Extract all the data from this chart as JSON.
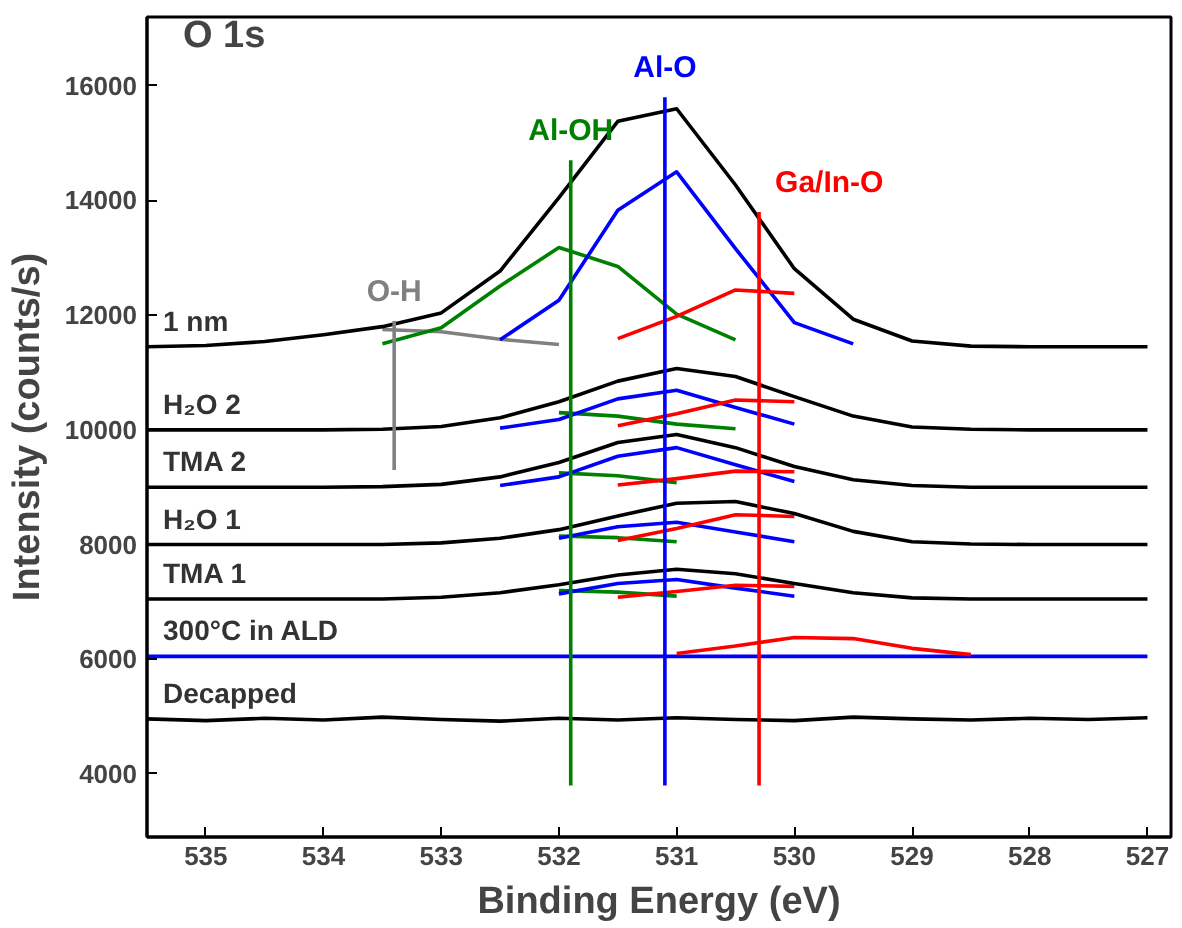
{
  "chart_data": {
    "type": "line",
    "xlabel": "Binding Energy (eV)",
    "ylabel": "Intensity (counts/s)",
    "xlim": [
      535.5,
      526.8
    ],
    "ylim": [
      2900,
      17200
    ],
    "xticks": [
      535,
      534,
      533,
      532,
      531,
      530,
      529,
      528,
      527
    ],
    "yticks": [
      4000,
      6000,
      8000,
      10000,
      12000,
      14000,
      16000
    ],
    "grid": false,
    "legend": "left",
    "marker": "none",
    "line_style": "solid",
    "x": [
      535.5,
      535,
      534.5,
      534,
      533.5,
      533,
      532.5,
      532,
      531.5,
      531,
      530.5,
      530,
      529.5,
      529,
      528.5,
      528,
      527.5,
      527
    ],
    "series": [
      {
        "color": "#808080",
        "values": [
          null,
          null,
          null,
          null,
          11750,
          11710,
          11580,
          11490,
          null,
          null,
          null,
          null,
          null,
          null,
          null,
          null,
          null,
          null
        ]
      },
      {
        "color": "#008000",
        "values": [
          null,
          null,
          null,
          null,
          11500,
          11780,
          12510,
          13180,
          12850,
          12020,
          11570,
          null,
          null,
          null,
          null,
          null,
          null,
          null
        ]
      },
      {
        "color": "#0000ff",
        "values": [
          null,
          null,
          null,
          null,
          null,
          null,
          11570,
          12260,
          13830,
          14500,
          13160,
          11870,
          11500,
          null,
          null,
          null,
          null,
          null
        ]
      },
      {
        "color": "#ff0000",
        "values": [
          null,
          null,
          null,
          null,
          null,
          null,
          null,
          null,
          11590,
          11980,
          12440,
          12380,
          null,
          null,
          null,
          null,
          null,
          null
        ]
      },
      {
        "name": "1 nm",
        "color": "#000000",
        "values": [
          11450,
          11470,
          11540,
          11660,
          11800,
          12040,
          12770,
          14050,
          15380,
          15600,
          14270,
          12810,
          11930,
          11550,
          11460,
          11450,
          11450,
          11450
        ]
      },
      {
        "color": "#008000",
        "values": [
          null,
          null,
          null,
          null,
          null,
          null,
          null,
          10300,
          10240,
          10100,
          10020,
          null,
          null,
          null,
          null,
          null,
          null,
          null
        ]
      },
      {
        "color": "#0000ff",
        "values": [
          null,
          null,
          null,
          null,
          null,
          null,
          10030,
          10180,
          10540,
          10690,
          10390,
          10100,
          null,
          null,
          null,
          null,
          null,
          null
        ]
      },
      {
        "color": "#ff0000",
        "values": [
          null,
          null,
          null,
          null,
          null,
          null,
          null,
          null,
          10070,
          10280,
          10520,
          10490,
          null,
          null,
          null,
          null,
          null,
          null
        ]
      },
      {
        "name": "H₂O 2",
        "color": "#000000",
        "values": [
          10000,
          10000,
          10000,
          10000,
          10010,
          10060,
          10210,
          10490,
          10850,
          11070,
          10930,
          10580,
          10240,
          10050,
          10010,
          10000,
          10000,
          10000
        ]
      },
      {
        "color": "#008000",
        "values": [
          null,
          null,
          null,
          null,
          null,
          null,
          null,
          9250,
          9200,
          9080,
          null,
          null,
          null,
          null,
          null,
          null,
          null,
          null
        ]
      },
      {
        "color": "#0000ff",
        "values": [
          null,
          null,
          null,
          null,
          null,
          null,
          9030,
          9180,
          9540,
          9690,
          9390,
          9100,
          null,
          null,
          null,
          null,
          null,
          null
        ]
      },
      {
        "color": "#ff0000",
        "values": [
          null,
          null,
          null,
          null,
          null,
          null,
          null,
          null,
          9040,
          9150,
          9280,
          9270,
          null,
          null,
          null,
          null,
          null,
          null
        ]
      },
      {
        "name": "TMA 2",
        "color": "#000000",
        "values": [
          9000,
          9000,
          9000,
          9000,
          9010,
          9050,
          9180,
          9430,
          9780,
          9920,
          9690,
          9360,
          9130,
          9030,
          9000,
          9000,
          9000,
          9000
        ]
      },
      {
        "color": "#008000",
        "values": [
          null,
          null,
          null,
          null,
          null,
          null,
          null,
          8150,
          8120,
          8050,
          null,
          null,
          null,
          null,
          null,
          null,
          null,
          null
        ]
      },
      {
        "color": "#0000ff",
        "values": [
          null,
          null,
          null,
          null,
          null,
          null,
          null,
          8110,
          8310,
          8390,
          8220,
          8050,
          null,
          null,
          null,
          null,
          null,
          null
        ]
      },
      {
        "color": "#ff0000",
        "values": [
          null,
          null,
          null,
          null,
          null,
          null,
          null,
          null,
          8070,
          8280,
          8520,
          8490,
          null,
          null,
          null,
          null,
          null,
          null
        ]
      },
      {
        "name": "H₂O 1",
        "color": "#000000",
        "values": [
          8000,
          8000,
          8000,
          8000,
          8000,
          8030,
          8110,
          8260,
          8500,
          8720,
          8750,
          8540,
          8230,
          8050,
          8010,
          8000,
          8000,
          8000
        ]
      },
      {
        "color": "#008000",
        "values": [
          null,
          null,
          null,
          null,
          null,
          null,
          null,
          7200,
          7170,
          7100,
          null,
          null,
          null,
          null,
          null,
          null,
          null,
          null
        ]
      },
      {
        "color": "#0000ff",
        "values": [
          null,
          null,
          null,
          null,
          null,
          null,
          null,
          7140,
          7320,
          7390,
          7240,
          7100,
          null,
          null,
          null,
          null,
          null,
          null
        ]
      },
      {
        "color": "#ff0000",
        "values": [
          null,
          null,
          null,
          null,
          null,
          null,
          null,
          null,
          7080,
          7180,
          7290,
          7270,
          null,
          null,
          null,
          null,
          null,
          null
        ]
      },
      {
        "name": "TMA 1",
        "color": "#000000",
        "values": [
          7050,
          7050,
          7050,
          7050,
          7050,
          7080,
          7160,
          7300,
          7470,
          7570,
          7490,
          7320,
          7160,
          7070,
          7050,
          7050,
          7050,
          7050
        ]
      },
      {
        "name": "300°C in ALD",
        "color": "#0000ff",
        "values": [
          6050,
          6050,
          6050,
          6050,
          6050,
          6050,
          6050,
          6050,
          6050,
          6050,
          6050,
          6050,
          6050,
          6050,
          6050,
          6050,
          6050,
          6050
        ]
      },
      {
        "color": "#ff0000",
        "values": [
          null,
          null,
          null,
          null,
          null,
          null,
          null,
          null,
          null,
          6100,
          6230,
          6380,
          6360,
          6190,
          6080,
          null,
          null,
          null
        ]
      },
      {
        "name": "Decapped",
        "color": "#000000",
        "values": [
          4960,
          4930,
          4970,
          4940,
          4990,
          4950,
          4920,
          4970,
          4940,
          4980,
          4950,
          4930,
          4990,
          4960,
          4940,
          4970,
          4950,
          4980
        ]
      },
      {
        "name": "O-H",
        "color": "#808080",
        "x": [
          533.4,
          533.4
        ],
        "values": [
          9300,
          11900
        ]
      },
      {
        "name": "Al-OH",
        "color": "#008000",
        "x": [
          531.9,
          531.9
        ],
        "values": [
          3800,
          14700
        ]
      },
      {
        "name": "Al-O",
        "color": "#0000ff",
        "x": [
          531.1,
          531.1
        ],
        "values": [
          3800,
          15800
        ]
      },
      {
        "name": "Ga/In-O",
        "color": "#ff0000",
        "x": [
          530.3,
          530.3
        ],
        "values": [
          3800,
          13800
        ]
      }
    ],
    "annotations": [
      "O 1s"
    ]
  }
}
